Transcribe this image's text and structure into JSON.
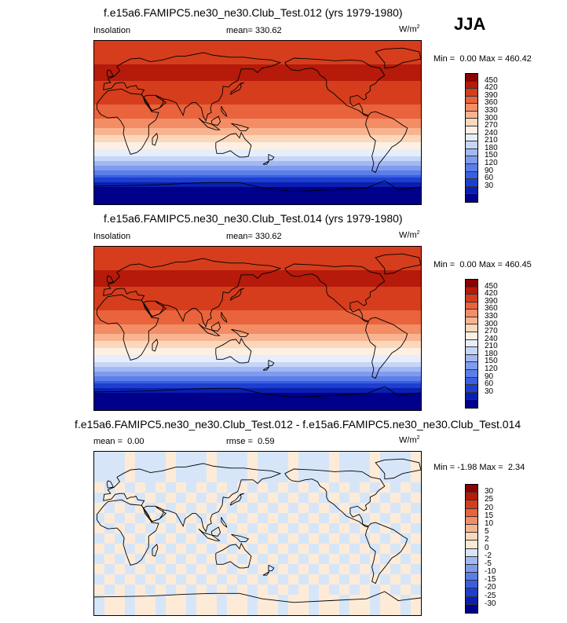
{
  "season": "JJA",
  "colors": {
    "insolation": [
      "#00008b",
      "#0a1fb0",
      "#1d3fd0",
      "#3a5fe0",
      "#5b7ee8",
      "#7f9bee",
      "#a3b8f3",
      "#c6d6f8",
      "#e6eefb",
      "#fdf0e2",
      "#fbd7bb",
      "#f8b490",
      "#f38d65",
      "#e9633c",
      "#d53d1c",
      "#b51a0a",
      "#8b0000"
    ],
    "diff": [
      "#00008b",
      "#0a1fb0",
      "#1d3fd0",
      "#3a5fe0",
      "#5b7ee8",
      "#7f9bee",
      "#a3b8f3",
      "#d6e6f8",
      "#fde8d4",
      "#fbd7bb",
      "#f8b490",
      "#f38d65",
      "#e9633c",
      "#d53d1c",
      "#b51a0a",
      "#8b0000"
    ]
  },
  "panels": [
    {
      "title": "f.e15a6.FAMIPC5.ne30_ne30.Club_Test.012 (yrs 1979-1980)",
      "left_label": "Insolation",
      "mean_label": "mean=",
      "mean_value": "330.62",
      "units": "W/m",
      "units_sup": "2",
      "min_label": "Min =",
      "min_value": "0.00",
      "max_label": "Max =",
      "max_value": "460.42",
      "levels": [
        "450",
        "420",
        "390",
        "360",
        "330",
        "300",
        "270",
        "240",
        "210",
        "180",
        "150",
        "120",
        "90",
        "60",
        "30"
      ]
    },
    {
      "title": "f.e15a6.FAMIPC5.ne30_ne30.Club_Test.014 (yrs 1979-1980)",
      "left_label": "Insolation",
      "mean_label": "mean=",
      "mean_value": "330.62",
      "units": "W/m",
      "units_sup": "2",
      "min_label": "Min =",
      "min_value": "0.00",
      "max_label": "Max =",
      "max_value": "460.45",
      "levels": [
        "450",
        "420",
        "390",
        "360",
        "330",
        "300",
        "270",
        "240",
        "210",
        "180",
        "150",
        "120",
        "90",
        "60",
        "30"
      ]
    },
    {
      "title": "f.e15a6.FAMIPC5.ne30_ne30.Club_Test.012 - f.e15a6.FAMIPC5.ne30_ne30.Club_Test.014",
      "left_label": "mean =",
      "left_value": "0.00",
      "mean_label": "rmse =",
      "mean_value": "0.59",
      "units": "W/m",
      "units_sup": "2",
      "min_label": "Min =",
      "min_value": "-1.98",
      "max_label": "Max =",
      "max_value": "2.34",
      "levels": [
        "30",
        "25",
        "20",
        "15",
        "10",
        "5",
        "2",
        "0",
        "-2",
        "-5",
        "-10",
        "-15",
        "-20",
        "-25",
        "-30"
      ]
    }
  ],
  "chart_data": [
    {
      "type": "heatmap",
      "title": "f.e15a6.FAMIPC5.ne30_ne30.Club_Test.012 (yrs 1979-1980)",
      "variable": "Insolation",
      "units": "W/m2",
      "mean": 330.62,
      "min": 0.0,
      "max": 460.42,
      "colorbar_levels": [
        30,
        60,
        90,
        120,
        150,
        180,
        210,
        240,
        270,
        300,
        330,
        360,
        390,
        420,
        450
      ],
      "zonal_profile": {
        "lat": [
          90,
          75,
          60,
          45,
          30,
          15,
          0,
          -15,
          -30,
          -45,
          -60,
          -75,
          -90
        ],
        "value": [
          440,
          435,
          455,
          450,
          440,
          410,
          380,
          330,
          270,
          200,
          100,
          10,
          0
        ]
      }
    },
    {
      "type": "heatmap",
      "title": "f.e15a6.FAMIPC5.ne30_ne30.Club_Test.014 (yrs 1979-1980)",
      "variable": "Insolation",
      "units": "W/m2",
      "mean": 330.62,
      "min": 0.0,
      "max": 460.45,
      "colorbar_levels": [
        30,
        60,
        90,
        120,
        150,
        180,
        210,
        240,
        270,
        300,
        330,
        360,
        390,
        420,
        450
      ],
      "zonal_profile": {
        "lat": [
          90,
          75,
          60,
          45,
          30,
          15,
          0,
          -15,
          -30,
          -45,
          -60,
          -75,
          -90
        ],
        "value": [
          440,
          435,
          455,
          450,
          440,
          410,
          380,
          330,
          270,
          200,
          100,
          10,
          0
        ]
      }
    },
    {
      "type": "heatmap",
      "title": "f.e15a6.FAMIPC5.ne30_ne30.Club_Test.012 - f.e15a6.FAMIPC5.ne30_ne30.Club_Test.014",
      "units": "W/m2",
      "mean": 0.0,
      "rmse": 0.59,
      "min": -1.98,
      "max": 2.34,
      "colorbar_levels": [
        -30,
        -25,
        -20,
        -15,
        -10,
        -5,
        -2,
        0,
        2,
        5,
        10,
        15,
        20,
        25,
        30
      ]
    }
  ]
}
